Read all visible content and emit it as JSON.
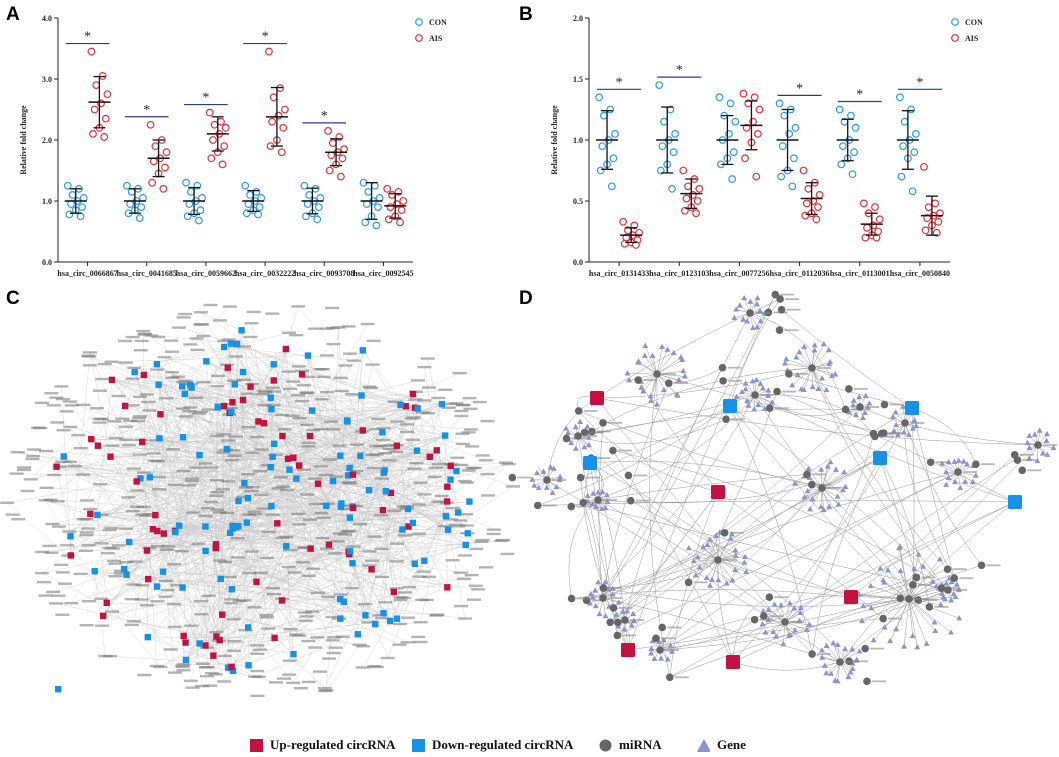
{
  "chart_data": [
    {
      "panel": "A",
      "type": "scatter",
      "ylabel": "Relative fold change",
      "ylim": [
        0,
        4
      ],
      "yticks": [
        "0.0",
        "1.0",
        "2.0",
        "3.0",
        "4.0"
      ],
      "legend": [
        "CON",
        "AIS"
      ],
      "colors": {
        "CON": "#2b9be0",
        "AIS": "#e0303a"
      },
      "categories": [
        "hsa_circ_0066867",
        "hsa_circ_0041685",
        "hsa_circ_0059662",
        "hsa_circ_0032222",
        "hsa_circ_0093708",
        "hsa_circ_0092545"
      ],
      "series": [
        {
          "name": "CON",
          "means": [
            1.0,
            1.0,
            1.0,
            1.0,
            1.0,
            1.0
          ],
          "sd": [
            0.2,
            0.2,
            0.22,
            0.17,
            0.21,
            0.3
          ],
          "points": [
            [
              1.25,
              1.2,
              1.1,
              1.05,
              1.0,
              0.95,
              0.9,
              0.85,
              0.78,
              0.75
            ],
            [
              1.25,
              1.2,
              1.15,
              1.05,
              1.0,
              0.95,
              0.9,
              0.85,
              0.8,
              0.72
            ],
            [
              1.3,
              1.25,
              1.15,
              1.05,
              1.0,
              0.95,
              0.85,
              0.8,
              0.75,
              0.68
            ],
            [
              1.25,
              1.15,
              1.1,
              1.05,
              1.0,
              0.95,
              0.9,
              0.85,
              0.8,
              0.78
            ],
            [
              1.25,
              1.2,
              1.1,
              1.05,
              1.0,
              0.95,
              0.9,
              0.8,
              0.75,
              0.7
            ],
            [
              1.3,
              1.25,
              1.15,
              1.05,
              1.0,
              0.95,
              0.9,
              0.75,
              0.65,
              0.6
            ]
          ]
        },
        {
          "name": "AIS",
          "means": [
            2.62,
            1.7,
            2.1,
            2.38,
            1.8,
            0.92
          ],
          "sd": [
            0.42,
            0.3,
            0.28,
            0.48,
            0.22,
            0.2
          ],
          "points": [
            [
              3.45,
              3.05,
              2.9,
              2.75,
              2.6,
              2.5,
              2.35,
              2.2,
              2.1,
              2.05
            ],
            [
              2.25,
              2.0,
              1.9,
              1.8,
              1.7,
              1.65,
              1.55,
              1.45,
              1.3,
              1.2
            ],
            [
              2.45,
              2.3,
              2.25,
              2.2,
              2.1,
              2.0,
              1.9,
              1.8,
              1.7,
              1.6
            ],
            [
              3.45,
              2.85,
              2.7,
              2.5,
              2.4,
              2.3,
              2.2,
              2.0,
              1.9,
              1.8
            ],
            [
              2.15,
              2.05,
              1.95,
              1.85,
              1.8,
              1.75,
              1.7,
              1.6,
              1.5,
              1.4
            ],
            [
              1.2,
              1.15,
              1.1,
              1.0,
              0.95,
              0.9,
              0.85,
              0.75,
              0.7,
              0.65
            ]
          ]
        }
      ],
      "significance": [
        "*",
        "*",
        "*",
        "*",
        "*",
        ""
      ]
    },
    {
      "panel": "B",
      "type": "scatter",
      "ylabel": "Relative fold change",
      "ylim": [
        0,
        2
      ],
      "yticks": [
        "0.0",
        "0.5",
        "1.0",
        "1.5",
        "2.0"
      ],
      "legend": [
        "CON",
        "AIS"
      ],
      "colors": {
        "CON": "#2b9be0",
        "AIS": "#e0303a"
      },
      "categories": [
        "hsa_circ_0131433",
        "hsa_circ_0123103",
        "hsa_circ_0077256",
        "hsa_circ_0112036",
        "hsa_circ_0113001",
        "hsa_circ_0050840"
      ],
      "series": [
        {
          "name": "CON",
          "means": [
            1.0,
            1.0,
            1.0,
            1.0,
            1.0,
            1.0
          ],
          "sd": [
            0.24,
            0.27,
            0.2,
            0.25,
            0.17,
            0.24
          ],
          "points": [
            [
              1.35,
              1.25,
              1.2,
              1.05,
              1.0,
              0.95,
              0.85,
              0.8,
              0.75,
              0.62
            ],
            [
              1.45,
              1.25,
              1.15,
              1.05,
              1.0,
              0.95,
              0.9,
              0.8,
              0.75,
              0.6
            ],
            [
              1.35,
              1.3,
              1.2,
              1.15,
              1.05,
              1.0,
              0.9,
              0.85,
              0.8,
              0.68
            ],
            [
              1.3,
              1.25,
              1.2,
              1.1,
              1.05,
              0.95,
              0.85,
              0.75,
              0.7,
              0.62
            ],
            [
              1.25,
              1.2,
              1.15,
              1.1,
              1.0,
              0.95,
              0.9,
              0.85,
              0.8,
              0.72
            ],
            [
              1.35,
              1.25,
              1.15,
              1.05,
              1.0,
              0.95,
              0.9,
              0.85,
              0.7,
              0.58
            ]
          ]
        },
        {
          "name": "AIS",
          "means": [
            0.22,
            0.56,
            1.12,
            0.52,
            0.31,
            0.38
          ],
          "sd": [
            0.06,
            0.12,
            0.2,
            0.13,
            0.09,
            0.16
          ],
          "points": [
            [
              0.33,
              0.3,
              0.26,
              0.24,
              0.22,
              0.2,
              0.18,
              0.16,
              0.15,
              0.14
            ],
            [
              0.75,
              0.68,
              0.62,
              0.6,
              0.55,
              0.52,
              0.5,
              0.45,
              0.42,
              0.4
            ],
            [
              1.38,
              1.35,
              1.3,
              1.25,
              1.15,
              1.1,
              1.05,
              0.98,
              0.85,
              0.7
            ],
            [
              0.75,
              0.65,
              0.6,
              0.55,
              0.5,
              0.48,
              0.45,
              0.4,
              0.38,
              0.35
            ],
            [
              0.48,
              0.45,
              0.4,
              0.35,
              0.3,
              0.28,
              0.25,
              0.22,
              0.2,
              0.2
            ],
            [
              0.78,
              0.48,
              0.45,
              0.4,
              0.38,
              0.36,
              0.33,
              0.3,
              0.26,
              0.24
            ]
          ]
        }
      ],
      "significance": [
        "*",
        "*",
        "",
        "*",
        "*",
        "*"
      ]
    }
  ],
  "panels": {
    "A": {
      "letter": "A"
    },
    "B": {
      "letter": "B"
    },
    "C": {
      "letter": "C",
      "description": "circRNA-miRNA-gene network (all)"
    },
    "D": {
      "letter": "D",
      "description": "circRNA-miRNA-gene network (selected)"
    }
  },
  "legend": {
    "up": {
      "label": "Up-regulated circRNA",
      "color": "#c4123f"
    },
    "down": {
      "label": "Down-regulated circRNA",
      "color": "#1592e6"
    },
    "mirna": {
      "label": "miRNA",
      "color": "#666666"
    },
    "gene": {
      "label": "Gene",
      "color": "#8b95cc"
    }
  }
}
